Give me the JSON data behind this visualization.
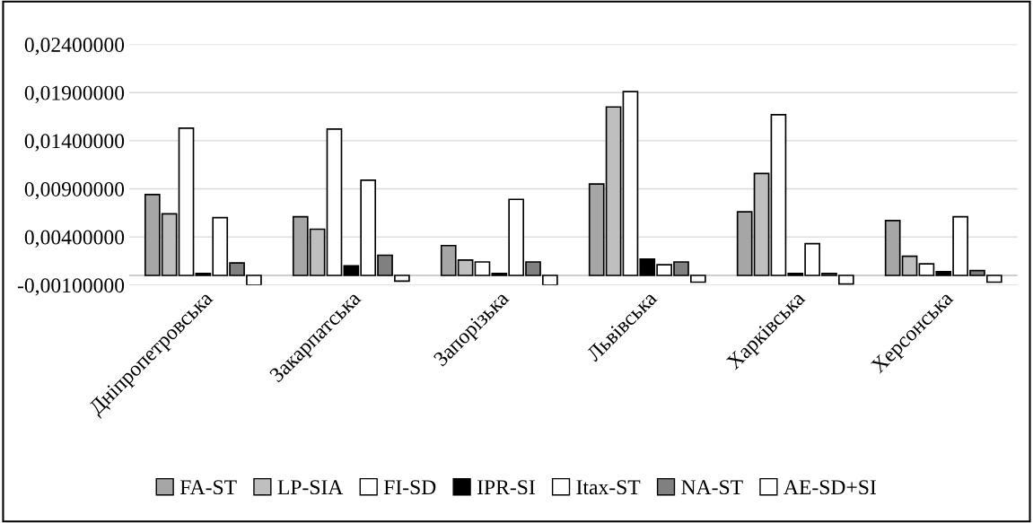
{
  "chart_data": {
    "type": "bar",
    "categories": [
      "Дніпропетровська",
      "Закарпатська",
      "Запорізька",
      "Львівська",
      "Харківська",
      "Херсонська"
    ],
    "series": [
      {
        "name": "FA-ST",
        "color": "#a6a6a6",
        "values": [
          0.0084,
          0.0061,
          0.0031,
          0.0095,
          0.0066,
          0.0057
        ]
      },
      {
        "name": "LP-SIA",
        "color": "#bfbfbf",
        "values": [
          0.0064,
          0.0048,
          0.0016,
          0.0175,
          0.0106,
          0.002
        ]
      },
      {
        "name": "FI-SD",
        "color": "#ffffff",
        "values": [
          0.0153,
          0.0152,
          0.0014,
          0.0191,
          0.0167,
          0.0012
        ]
      },
      {
        "name": "IPR-SI",
        "color": "#000000",
        "values": [
          0.0002,
          0.001,
          0.0002,
          0.0017,
          0.0002,
          0.0004
        ]
      },
      {
        "name": "Itax-ST",
        "color": "#ffffff",
        "values": [
          0.006,
          0.0099,
          0.0079,
          0.0011,
          0.0033,
          0.0061
        ]
      },
      {
        "name": "NA-ST",
        "color": "#808080",
        "values": [
          0.0013,
          0.0021,
          0.0014,
          0.0014,
          0.0002,
          0.0005
        ]
      },
      {
        "name": "AE-SD+SI",
        "color": "#ffffff",
        "values": [
          -0.001,
          -0.0006,
          -0.001,
          -0.0007,
          -0.0009,
          -0.0007
        ]
      }
    ],
    "ylim": [
      -0.001,
      0.024
    ],
    "yticks": [
      {
        "value": -0.001,
        "label": "-0,00100000"
      },
      {
        "value": 0.004,
        "label": "0,00400000"
      },
      {
        "value": 0.009,
        "label": "0,00900000"
      },
      {
        "value": 0.014,
        "label": "0,01400000"
      },
      {
        "value": 0.019,
        "label": "0,01900000"
      },
      {
        "value": 0.024,
        "label": "0,02400000"
      }
    ],
    "grid": "y",
    "legend": "bottom"
  }
}
